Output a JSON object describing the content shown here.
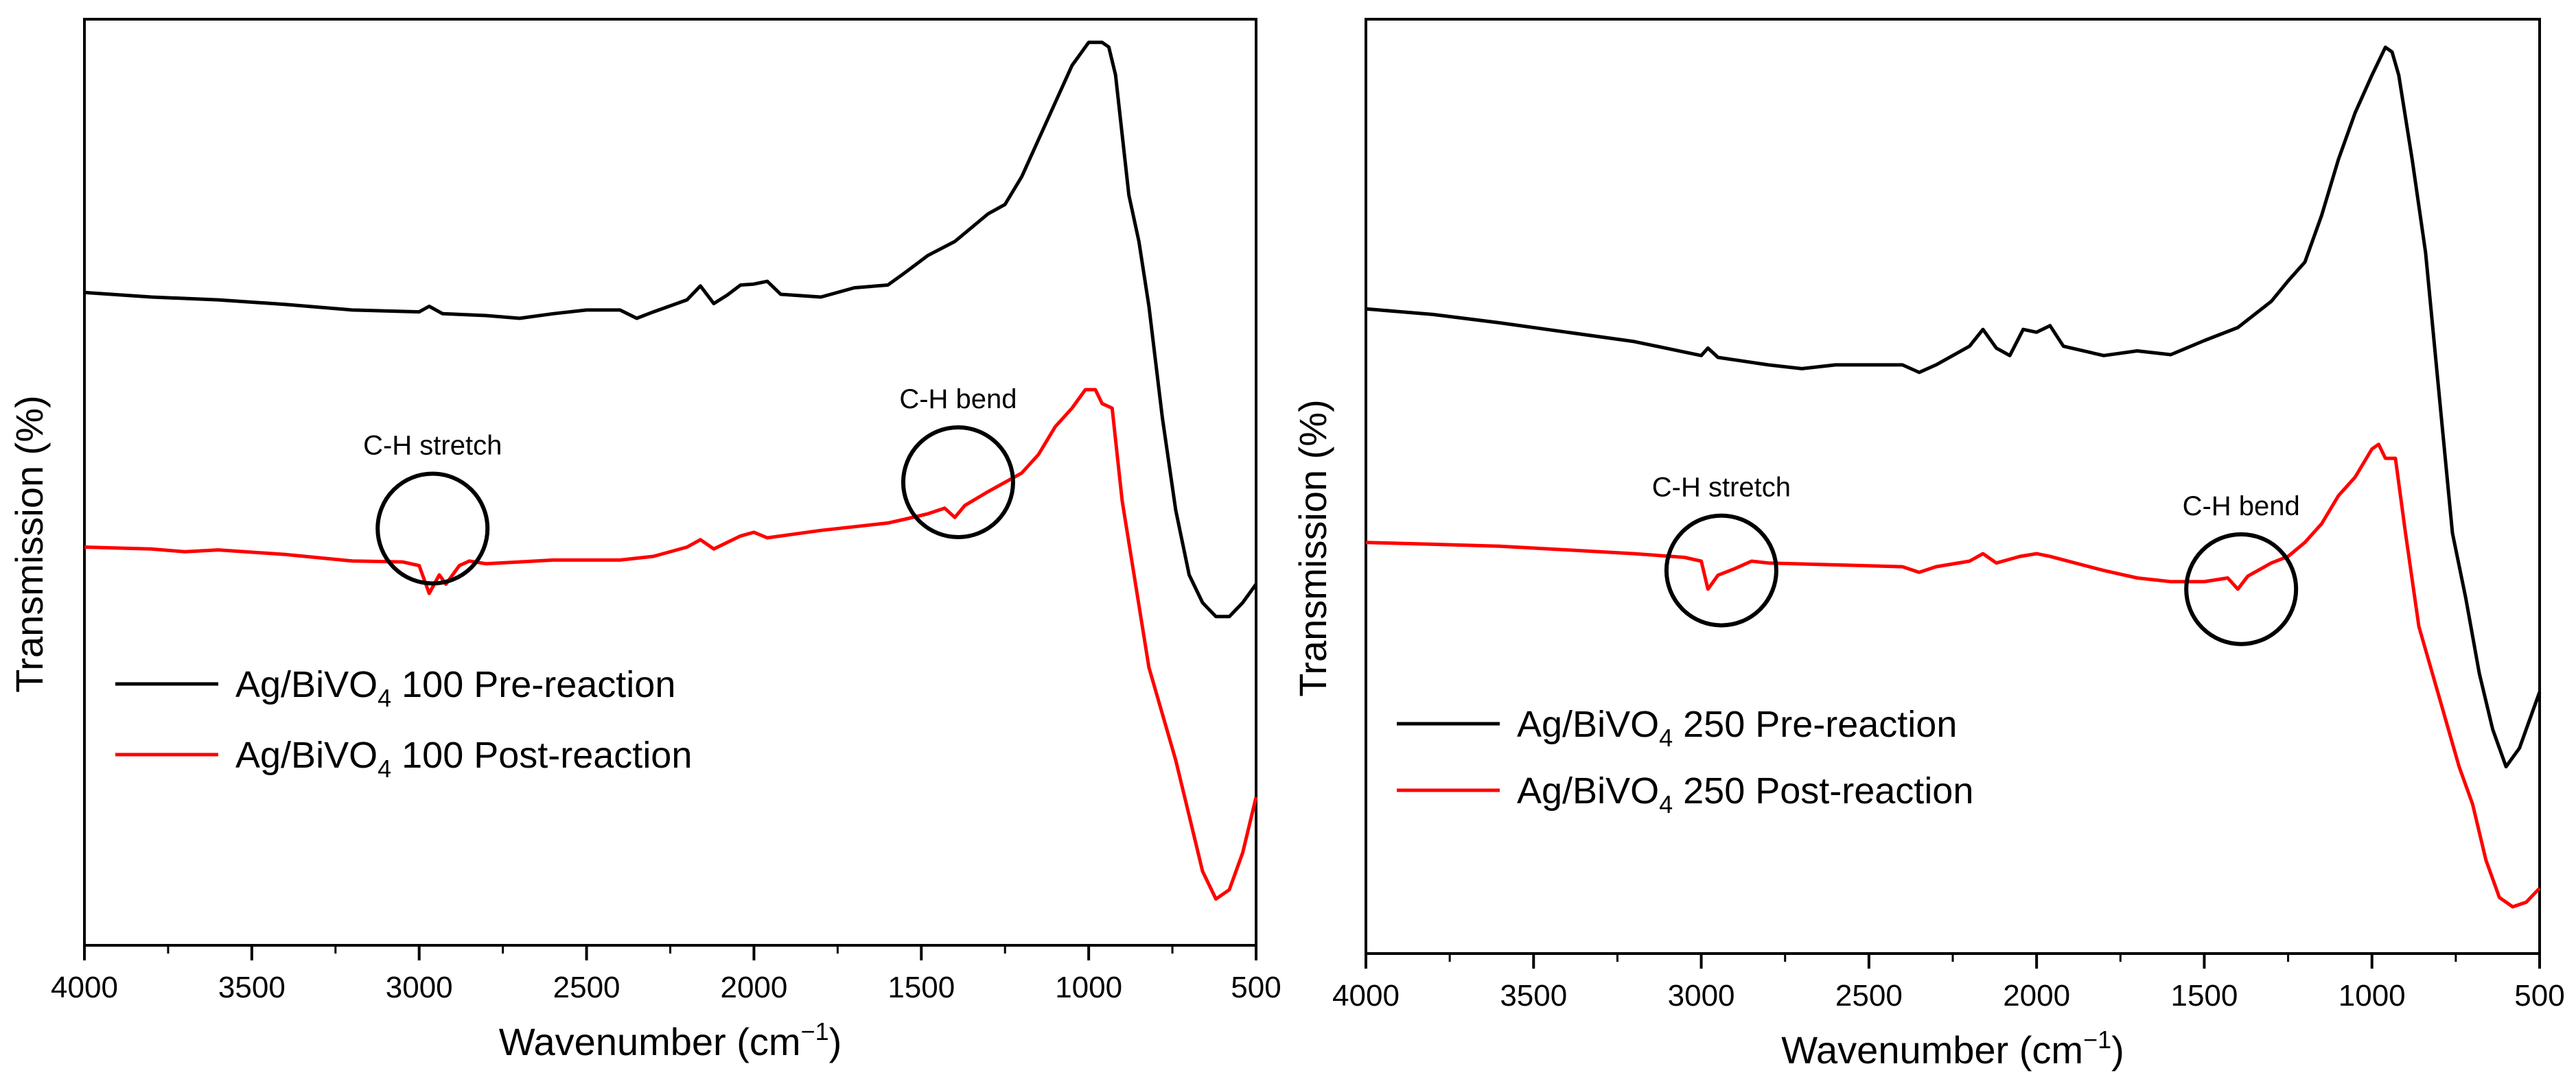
{
  "chart_data": [
    {
      "type": "line",
      "title": "",
      "xlabel": "Wavenumber (cm",
      "xlabel_sup": "−1",
      "xlabel_close": ")",
      "ylabel": "Transmission (%)",
      "xlim": [
        4000,
        500
      ],
      "x_reversed": true,
      "ylim": [
        0,
        1
      ],
      "y_ticks_labeled": false,
      "grid": false,
      "legend_position": "left-middle",
      "x_ticks": [
        "4000",
        "3500",
        "3000",
        "2500",
        "2000",
        "1500",
        "1000",
        "500"
      ],
      "annotations": [
        {
          "label": "C-H stretch",
          "x": 2960,
          "y": 0.45
        },
        {
          "label": "C-H bend",
          "x": 1390,
          "y": 0.5
        }
      ],
      "series": [
        {
          "name": "Ag/BiVO4 100 Pre-reaction",
          "legend_main": "Ag/BiVO",
          "legend_sub": "4",
          "legend_rest": " 100 Pre-reaction",
          "color": "#000000",
          "points": [
            [
              4000,
              0.705
            ],
            [
              3800,
              0.7
            ],
            [
              3600,
              0.697
            ],
            [
              3400,
              0.692
            ],
            [
              3200,
              0.686
            ],
            [
              3000,
              0.684
            ],
            [
              2970,
              0.69
            ],
            [
              2930,
              0.682
            ],
            [
              2800,
              0.68
            ],
            [
              2700,
              0.677
            ],
            [
              2600,
              0.682
            ],
            [
              2500,
              0.686
            ],
            [
              2400,
              0.686
            ],
            [
              2350,
              0.677
            ],
            [
              2300,
              0.684
            ],
            [
              2200,
              0.697
            ],
            [
              2160,
              0.712
            ],
            [
              2120,
              0.693
            ],
            [
              2080,
              0.702
            ],
            [
              2040,
              0.713
            ],
            [
              2000,
              0.714
            ],
            [
              1960,
              0.717
            ],
            [
              1920,
              0.703
            ],
            [
              1800,
              0.7
            ],
            [
              1700,
              0.71
            ],
            [
              1600,
              0.713
            ],
            [
              1550,
              0.726
            ],
            [
              1480,
              0.745
            ],
            [
              1400,
              0.76
            ],
            [
              1300,
              0.79
            ],
            [
              1250,
              0.8
            ],
            [
              1200,
              0.83
            ],
            [
              1150,
              0.87
            ],
            [
              1100,
              0.91
            ],
            [
              1050,
              0.95
            ],
            [
              1000,
              0.975
            ],
            [
              960,
              0.975
            ],
            [
              940,
              0.97
            ],
            [
              920,
              0.94
            ],
            [
              880,
              0.81
            ],
            [
              850,
              0.76
            ],
            [
              820,
              0.69
            ],
            [
              780,
              0.57
            ],
            [
              740,
              0.47
            ],
            [
              700,
              0.4
            ],
            [
              660,
              0.37
            ],
            [
              620,
              0.355
            ],
            [
              580,
              0.355
            ],
            [
              540,
              0.37
            ],
            [
              500,
              0.39
            ]
          ]
        },
        {
          "name": "Ag/BiVO4 100 Post-reaction",
          "legend_main": "Ag/BiVO",
          "legend_sub": "4",
          "legend_rest": " 100 Post-reaction",
          "color": "#ff0000",
          "points": [
            [
              4000,
              0.43
            ],
            [
              3800,
              0.428
            ],
            [
              3700,
              0.425
            ],
            [
              3600,
              0.427
            ],
            [
              3400,
              0.422
            ],
            [
              3200,
              0.415
            ],
            [
              3050,
              0.414
            ],
            [
              3000,
              0.41
            ],
            [
              2970,
              0.38
            ],
            [
              2940,
              0.4
            ],
            [
              2920,
              0.39
            ],
            [
              2880,
              0.41
            ],
            [
              2850,
              0.415
            ],
            [
              2800,
              0.412
            ],
            [
              2700,
              0.414
            ],
            [
              2600,
              0.416
            ],
            [
              2400,
              0.416
            ],
            [
              2300,
              0.42
            ],
            [
              2200,
              0.43
            ],
            [
              2160,
              0.438
            ],
            [
              2120,
              0.428
            ],
            [
              2040,
              0.442
            ],
            [
              2000,
              0.446
            ],
            [
              1960,
              0.44
            ],
            [
              1800,
              0.448
            ],
            [
              1700,
              0.452
            ],
            [
              1600,
              0.456
            ],
            [
              1550,
              0.46
            ],
            [
              1480,
              0.466
            ],
            [
              1430,
              0.472
            ],
            [
              1400,
              0.462
            ],
            [
              1370,
              0.475
            ],
            [
              1300,
              0.49
            ],
            [
              1250,
              0.5
            ],
            [
              1200,
              0.51
            ],
            [
              1150,
              0.53
            ],
            [
              1100,
              0.56
            ],
            [
              1050,
              0.58
            ],
            [
              1010,
              0.6
            ],
            [
              980,
              0.6
            ],
            [
              960,
              0.585
            ],
            [
              930,
              0.58
            ],
            [
              900,
              0.48
            ],
            [
              860,
              0.39
            ],
            [
              820,
              0.3
            ],
            [
              780,
              0.25
            ],
            [
              740,
              0.2
            ],
            [
              700,
              0.14
            ],
            [
              660,
              0.08
            ],
            [
              620,
              0.05
            ],
            [
              580,
              0.06
            ],
            [
              540,
              0.1
            ],
            [
              500,
              0.16
            ]
          ]
        }
      ]
    },
    {
      "type": "line",
      "title": "",
      "xlabel": "Wavenumber (cm",
      "xlabel_sup": "−1",
      "xlabel_close": ")",
      "ylabel": "Transmission (%)",
      "xlim": [
        4000,
        500
      ],
      "x_reversed": true,
      "ylim": [
        0,
        1
      ],
      "y_ticks_labeled": false,
      "grid": false,
      "legend_position": "left-middle",
      "x_ticks": [
        "4000",
        "3500",
        "3000",
        "2500",
        "2000",
        "1500",
        "1000",
        "500"
      ],
      "annotations": [
        {
          "label": "C-H stretch",
          "x": 2940,
          "y": 0.41
        },
        {
          "label": "C-H bend",
          "x": 1390,
          "y": 0.39
        }
      ],
      "series": [
        {
          "name": "Ag/BiVO4 250 Pre-reaction",
          "legend_main": "Ag/BiVO",
          "legend_sub": "4",
          "legend_rest": " 250 Pre-reaction",
          "color": "#000000",
          "points": [
            [
              4000,
              0.69
            ],
            [
              3800,
              0.684
            ],
            [
              3600,
              0.675
            ],
            [
              3400,
              0.665
            ],
            [
              3200,
              0.655
            ],
            [
              3000,
              0.64
            ],
            [
              2980,
              0.648
            ],
            [
              2950,
              0.638
            ],
            [
              2800,
              0.63
            ],
            [
              2700,
              0.626
            ],
            [
              2600,
              0.63
            ],
            [
              2500,
              0.63
            ],
            [
              2400,
              0.63
            ],
            [
              2350,
              0.622
            ],
            [
              2300,
              0.63
            ],
            [
              2200,
              0.65
            ],
            [
              2160,
              0.668
            ],
            [
              2120,
              0.648
            ],
            [
              2080,
              0.64
            ],
            [
              2040,
              0.668
            ],
            [
              2000,
              0.665
            ],
            [
              1960,
              0.672
            ],
            [
              1920,
              0.65
            ],
            [
              1800,
              0.64
            ],
            [
              1700,
              0.645
            ],
            [
              1600,
              0.641
            ],
            [
              1500,
              0.656
            ],
            [
              1400,
              0.67
            ],
            [
              1300,
              0.698
            ],
            [
              1250,
              0.72
            ],
            [
              1200,
              0.74
            ],
            [
              1150,
              0.79
            ],
            [
              1100,
              0.85
            ],
            [
              1050,
              0.9
            ],
            [
              1000,
              0.94
            ],
            [
              960,
              0.97
            ],
            [
              940,
              0.965
            ],
            [
              920,
              0.94
            ],
            [
              880,
              0.85
            ],
            [
              840,
              0.75
            ],
            [
              800,
              0.6
            ],
            [
              760,
              0.45
            ],
            [
              720,
              0.38
            ],
            [
              680,
              0.3
            ],
            [
              640,
              0.24
            ],
            [
              600,
              0.2
            ],
            [
              560,
              0.22
            ],
            [
              520,
              0.26
            ],
            [
              500,
              0.28
            ]
          ]
        },
        {
          "name": "Ag/BiVO4 250 Post-reaction",
          "legend_main": "Ag/BiVO",
          "legend_sub": "4",
          "legend_rest": " 250 Post-reaction",
          "color": "#ff0000",
          "points": [
            [
              4000,
              0.44
            ],
            [
              3800,
              0.438
            ],
            [
              3600,
              0.436
            ],
            [
              3400,
              0.432
            ],
            [
              3200,
              0.428
            ],
            [
              3050,
              0.424
            ],
            [
              3000,
              0.42
            ],
            [
              2980,
              0.39
            ],
            [
              2950,
              0.405
            ],
            [
              2900,
              0.412
            ],
            [
              2850,
              0.42
            ],
            [
              2800,
              0.418
            ],
            [
              2600,
              0.416
            ],
            [
              2400,
              0.414
            ],
            [
              2350,
              0.408
            ],
            [
              2300,
              0.414
            ],
            [
              2200,
              0.42
            ],
            [
              2160,
              0.428
            ],
            [
              2120,
              0.418
            ],
            [
              2050,
              0.425
            ],
            [
              2000,
              0.428
            ],
            [
              1960,
              0.425
            ],
            [
              1800,
              0.41
            ],
            [
              1700,
              0.402
            ],
            [
              1600,
              0.398
            ],
            [
              1500,
              0.398
            ],
            [
              1430,
              0.402
            ],
            [
              1400,
              0.39
            ],
            [
              1370,
              0.404
            ],
            [
              1300,
              0.418
            ],
            [
              1250,
              0.425
            ],
            [
              1200,
              0.44
            ],
            [
              1150,
              0.46
            ],
            [
              1100,
              0.49
            ],
            [
              1050,
              0.51
            ],
            [
              1000,
              0.54
            ],
            [
              980,
              0.545
            ],
            [
              960,
              0.53
            ],
            [
              930,
              0.53
            ],
            [
              900,
              0.45
            ],
            [
              860,
              0.35
            ],
            [
              820,
              0.3
            ],
            [
              780,
              0.25
            ],
            [
              740,
              0.2
            ],
            [
              700,
              0.16
            ],
            [
              660,
              0.1
            ],
            [
              620,
              0.06
            ],
            [
              580,
              0.05
            ],
            [
              540,
              0.055
            ],
            [
              500,
              0.07
            ]
          ]
        }
      ]
    }
  ]
}
